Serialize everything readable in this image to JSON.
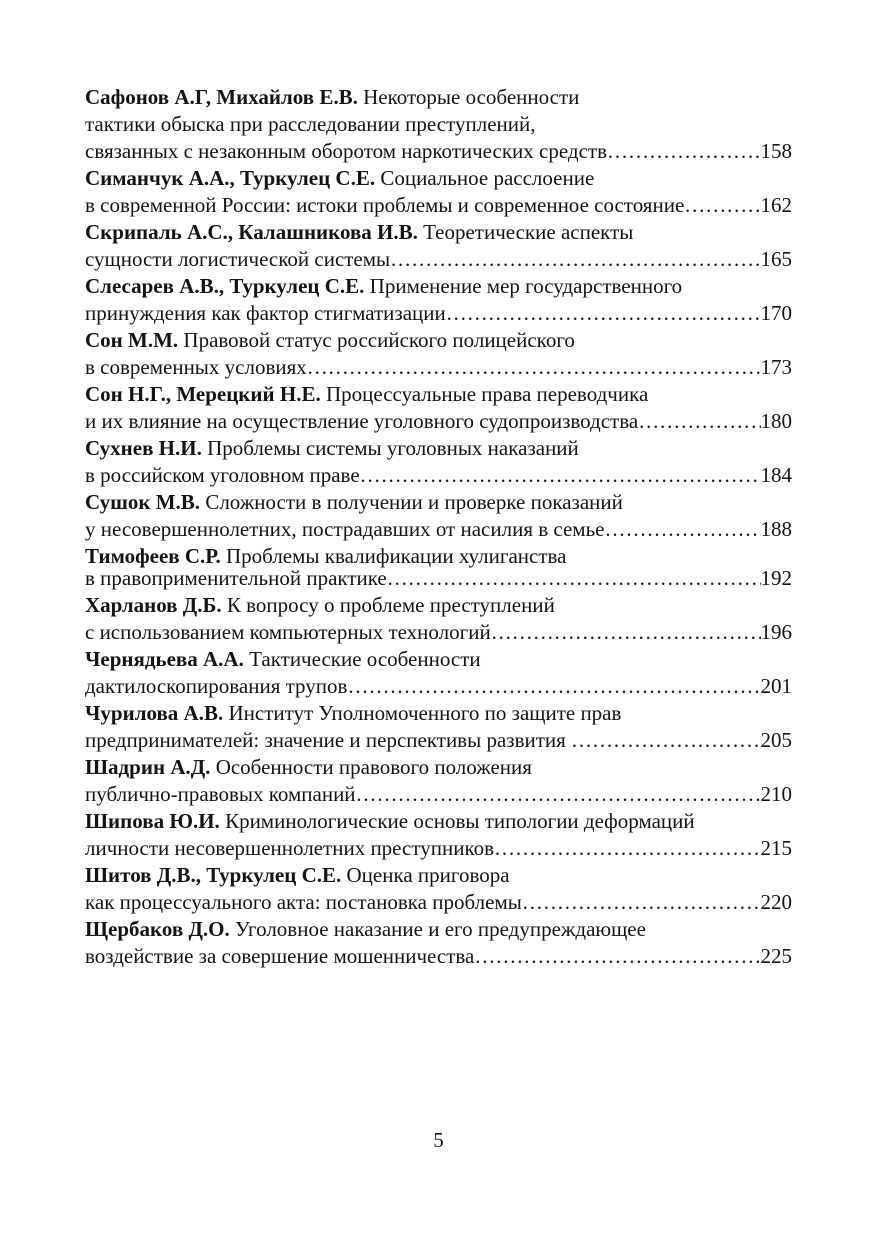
{
  "page": {
    "footer_page_number": "5",
    "dot_leader": "………………………………………………………………………………………………………………………………………………………………",
    "entries": [
      {
        "author": "Сафонов А.Г, Михайлов Е.В.",
        "first_line": "Некоторые особенности",
        "middle_lines": [
          "тактики обыска при расследовании преступлений,"
        ],
        "last_line": "связанных с незаконным оборотом наркотических средств",
        "page_ref": "158"
      },
      {
        "author": "Симанчук А.А., Туркулец С.Е.",
        "first_line": "Социальное расслоение",
        "middle_lines": [],
        "last_line": "в современной России: истоки проблемы и современное состояние",
        "page_ref": "162"
      },
      {
        "author": "Скрипаль А.С., Калашникова И.В.",
        "first_line": "Теоретические аспекты",
        "middle_lines": [],
        "last_line": "сущности логистической системы",
        "page_ref": "165"
      },
      {
        "author": "Слесарев А.В., Туркулец С.Е.",
        "first_line": "Применение мер государственного",
        "middle_lines": [],
        "last_line": "принуждения как фактор стигматизации",
        "page_ref": "170"
      },
      {
        "author": "Сон М.М.",
        "first_line": "Правовой статус российского полицейского",
        "middle_lines": [],
        "last_line": "в современных условиях",
        "page_ref": "173"
      },
      {
        "author": "Сон Н.Г., Мерецкий Н.Е.",
        "first_line": "Процессуальные права переводчика",
        "middle_lines": [],
        "last_line": "и их влияние на осуществление уголовного судопроизводства",
        "page_ref": "180"
      },
      {
        "author": "Сухнев Н.И.",
        "first_line": "Проблемы системы уголовных наказаний",
        "middle_lines": [],
        "last_line": "в российском уголовном праве",
        "page_ref": "184"
      },
      {
        "author": "Сушок М.В.",
        "first_line": "Сложности в получении и проверке показаний",
        "middle_lines": [],
        "last_line": "у несовершеннолетних, пострадавших от насилия в семье",
        "page_ref": "188"
      },
      {
        "author": "Тимофеев С.Р.",
        "first_line": "Проблемы квалификации хулиганства",
        "middle_lines": [],
        "last_line": "в правоприменительной практике",
        "page_ref": "192",
        "tight": true
      },
      {
        "author": "Харланов Д.Б.",
        "first_line": "К вопросу о проблеме преступлений",
        "middle_lines": [],
        "last_line": "с использованием компьютерных технологий",
        "page_ref": "196"
      },
      {
        "author": "Чернядьева А.А.",
        "first_line": "Тактические особенности",
        "middle_lines": [],
        "last_line": "дактилоскопирования трупов",
        "page_ref": "201"
      },
      {
        "author": "Чурилова А.В.",
        "first_line": "Институт Уполномоченного по защите прав",
        "middle_lines": [],
        "last_line": "предпринимателей: значение и перспективы развития ",
        "page_ref": "205"
      },
      {
        "author": "Шадрин А.Д.",
        "first_line": "Особенности правового положения",
        "middle_lines": [],
        "last_line": "публично-правовых компаний",
        "page_ref": "210"
      },
      {
        "author": "Шипова Ю.И.",
        "first_line": "Криминологические основы типологии деформаций",
        "middle_lines": [],
        "last_line": "личности несовершеннолетних преступников",
        "page_ref": "215"
      },
      {
        "author": "Шитов Д.В., Туркулец С.Е.",
        "first_line": "Оценка приговора",
        "middle_lines": [],
        "last_line": "как процессуального акта: постановка проблемы",
        "page_ref": "220"
      },
      {
        "author": "Щербаков Д.О.",
        "first_line": "Уголовное наказание и его предупреждающее",
        "middle_lines": [],
        "last_line": "воздействие за совершение мошенничества",
        "page_ref": "225"
      }
    ]
  }
}
